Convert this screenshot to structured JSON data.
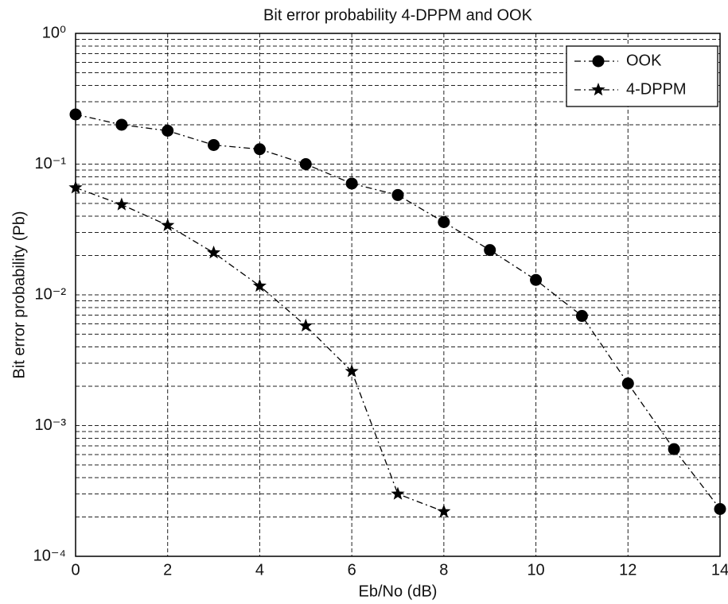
{
  "chart_data": {
    "type": "line",
    "title": "Bit error probability 4-DPPM and OOK",
    "xlabel": "Eb/No  (dB)",
    "ylabel": "Bit error probability  (Pb)",
    "x": [
      0,
      1,
      2,
      3,
      4,
      5,
      6,
      7,
      8,
      9,
      10,
      11,
      12,
      13,
      14
    ],
    "series": [
      {
        "name": "OOK",
        "color": "#000000",
        "marker": "circle",
        "linestyle": "dashdot",
        "values": [
          0.24,
          0.2,
          0.18,
          0.14,
          0.13,
          0.1,
          0.071,
          0.058,
          0.036,
          0.022,
          0.013,
          0.0069,
          0.0021,
          0.00066,
          0.00023
        ]
      },
      {
        "name": "4-DPPM",
        "color": "#000000",
        "marker": "star",
        "linestyle": "dashdot",
        "values": [
          0.066,
          0.049,
          0.034,
          0.021,
          0.0117,
          0.0058,
          0.0026,
          0.0003,
          0.00022,
          null,
          null,
          null,
          null,
          null,
          null
        ]
      }
    ],
    "xlim": [
      0,
      14
    ],
    "xticks": [
      0,
      2,
      4,
      6,
      8,
      10,
      12,
      14
    ],
    "ylim": [
      0.0001,
      1
    ],
    "ylog": true,
    "yticks": [
      {
        "value": 0.0001,
        "label": "10⁻⁴"
      },
      {
        "value": 0.001,
        "label": "10⁻³"
      },
      {
        "value": 0.01,
        "label": "10⁻²"
      },
      {
        "value": 0.1,
        "label": "10⁻¹"
      },
      {
        "value": 1,
        "label": "10⁰"
      }
    ],
    "grid": true,
    "minor_grid": true,
    "legend": "northeast"
  }
}
